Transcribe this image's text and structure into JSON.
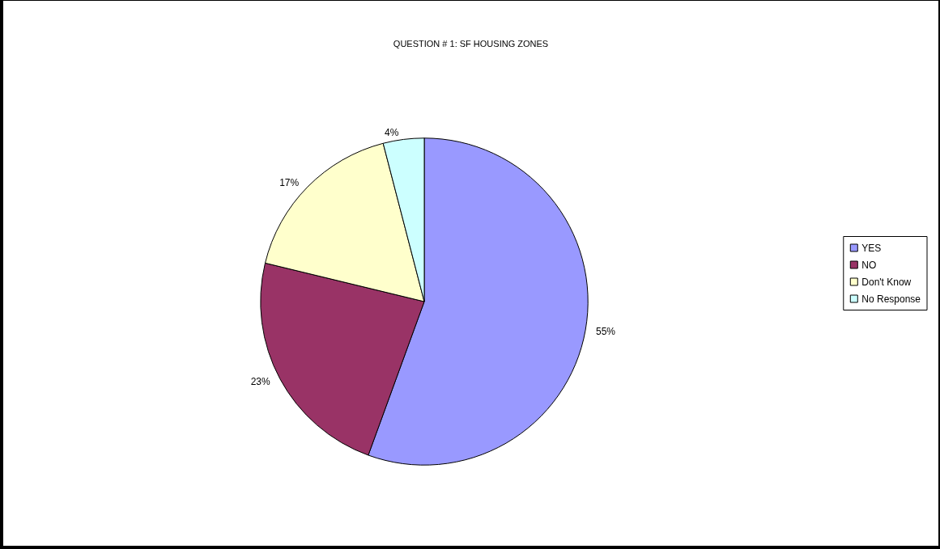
{
  "chart_data": {
    "type": "pie",
    "title": "QUESTION # 1: SF HOUSING ZONES",
    "categories": [
      "YES",
      "NO",
      "Don't Know",
      "No Response"
    ],
    "values": [
      55,
      23,
      17,
      4
    ],
    "colors": [
      "#9999ff",
      "#993366",
      "#ffffcc",
      "#ccffff"
    ],
    "value_labels": [
      "55%",
      "23%",
      "17%",
      "4%"
    ],
    "legend": "right"
  }
}
